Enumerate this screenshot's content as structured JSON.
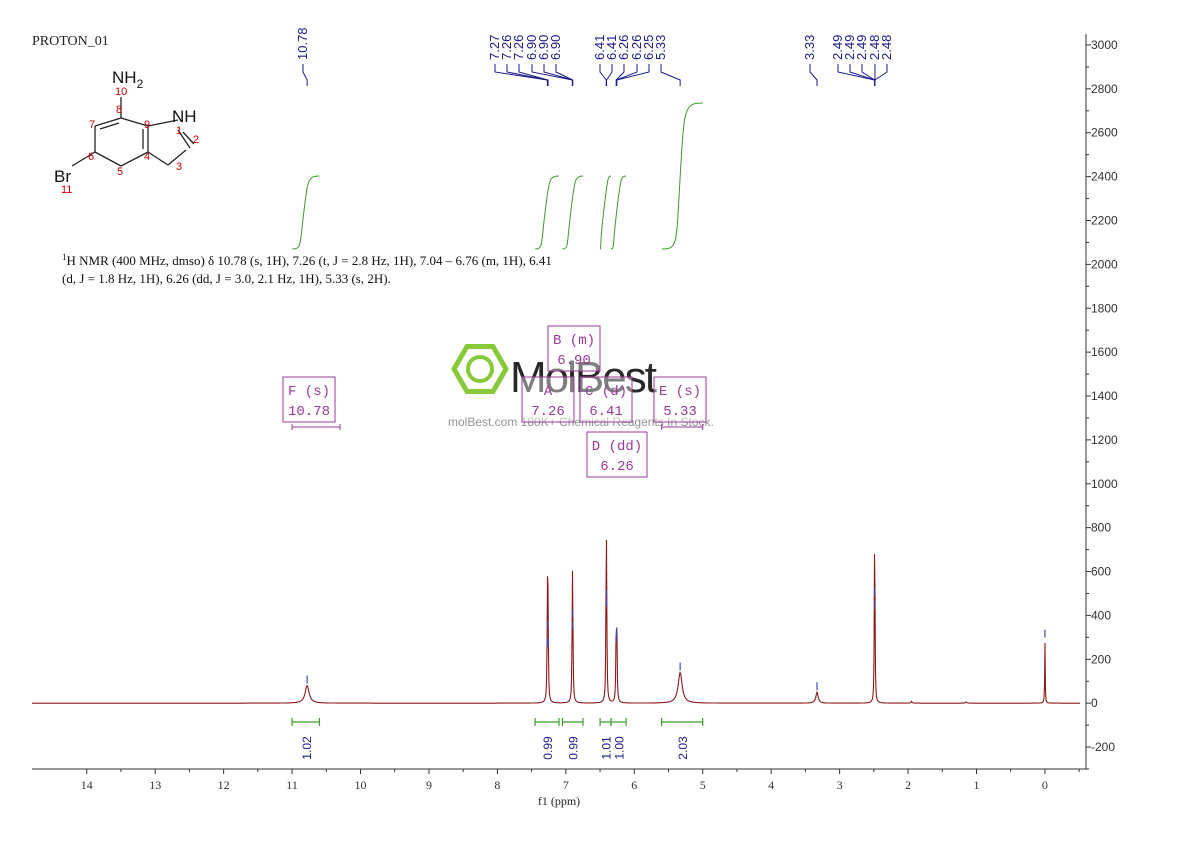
{
  "chart_data": {
    "type": "line",
    "title": "PROTON_01",
    "xlabel": "f1 (ppm)",
    "x_range": [
      14.8,
      -0.6
    ],
    "x_ticks": [
      14,
      13,
      12,
      11,
      10,
      9,
      8,
      7,
      6,
      5,
      4,
      3,
      2,
      1,
      0
    ],
    "y_range": [
      -300,
      3050
    ],
    "y_ticks": [
      3000,
      2800,
      2600,
      2400,
      2200,
      2000,
      1800,
      1600,
      1400,
      1200,
      1000,
      800,
      600,
      400,
      200,
      0,
      -200
    ],
    "y_tick_labels": [
      "3000",
      "2800",
      "2600",
      "2400",
      "2200",
      "2000",
      "1800",
      "1600",
      "1400",
      "1200",
      "1000",
      "800",
      "600",
      "400",
      "200",
      "0",
      "-200"
    ],
    "peaks": [
      {
        "ppm": 10.78,
        "height": 80,
        "width": 0.035
      },
      {
        "ppm": 7.27,
        "height": 250,
        "width": 0.006
      },
      {
        "ppm": 7.265,
        "height": 330,
        "width": 0.006
      },
      {
        "ppm": 7.26,
        "height": 250,
        "width": 0.006
      },
      {
        "ppm": 6.905,
        "height": 330,
        "width": 0.006
      },
      {
        "ppm": 6.9,
        "height": 380,
        "width": 0.006
      },
      {
        "ppm": 6.41,
        "height": 470,
        "width": 0.006
      },
      {
        "ppm": 6.405,
        "height": 430,
        "width": 0.006
      },
      {
        "ppm": 6.265,
        "height": 270,
        "width": 0.006
      },
      {
        "ppm": 6.255,
        "height": 300,
        "width": 0.006
      },
      {
        "ppm": 5.33,
        "height": 140,
        "width": 0.035
      },
      {
        "ppm": 3.33,
        "height": 50,
        "width": 0.02
      },
      {
        "ppm": 2.49,
        "height": 480,
        "width": 0.005
      },
      {
        "ppm": 2.485,
        "height": 420,
        "width": 0.005
      },
      {
        "ppm": 1.95,
        "height": 8,
        "width": 0.01
      },
      {
        "ppm": 1.15,
        "height": 6,
        "width": 0.01
      },
      {
        "ppm": 0.0,
        "height": 290,
        "width": 0.004
      }
    ],
    "peak_labels_left": [
      "10.78"
    ],
    "peak_group_aromatic": [
      "7.27",
      "7.26",
      "7.26",
      "6.90",
      "6.90",
      "6.90"
    ],
    "peak_group_mid": [
      "6.41",
      "6.41",
      "6.26",
      "6.26",
      "6.25",
      "5.33"
    ],
    "peak_group_right_single": [
      "3.33"
    ],
    "peak_group_solvent": [
      "2.49",
      "2.49",
      "2.49",
      "2.48",
      "2.48"
    ],
    "integrals": [
      {
        "value": "1.02",
        "from": 11.0,
        "to": 10.6
      },
      {
        "value": "0.99",
        "from": 7.45,
        "to": 7.1
      },
      {
        "value": "0.99",
        "from": 7.05,
        "to": 6.75
      },
      {
        "value": "1.01",
        "from": 6.5,
        "to": 6.34
      },
      {
        "value": "1.00",
        "from": 6.34,
        "to": 6.12
      },
      {
        "value": "2.03",
        "from": 5.6,
        "to": 5.0
      }
    ],
    "multiplets": [
      {
        "letter": "F (s)",
        "shift": "10.78"
      },
      {
        "letter": "A",
        "shift": "7.26"
      },
      {
        "letter": "B (m)",
        "shift": "6.90"
      },
      {
        "letter": "C (d)",
        "shift": "6.41"
      },
      {
        "letter": "D (dd)",
        "shift": "6.26"
      },
      {
        "letter": "E (s)",
        "shift": "5.33"
      }
    ],
    "colors": {
      "spectrum": "#8b1a1a",
      "integral": "#3a9a2a",
      "peak_label": "#1a1a8c",
      "multiplet": "#9a3a9a",
      "atom_number": "#cc0000"
    }
  },
  "report": {
    "line1_prefix": "1",
    "line1": "H NMR (400 MHz, dmso) δ 10.78 (s, 1H), 7.26 (t, J = 2.8 Hz, 1H), 7.04 – 6.76 (m, 1H), 6.41",
    "line2": "(d, J = 1.8 Hz, 1H), 6.26 (dd, J = 3.0, 2.1 Hz, 1H), 5.33 (s, 2H)."
  },
  "structure": {
    "nh2": "NH",
    "nh2_sub": "2",
    "nh": "NH",
    "br": "Br",
    "atom_numbers": [
      "1",
      "2",
      "3",
      "4",
      "5",
      "6",
      "7",
      "8",
      "9",
      "10",
      "11"
    ]
  },
  "watermark": {
    "brand": "MolBest",
    "tagline": "molBest.com 180K+ Chemical Reagents In Stock."
  }
}
